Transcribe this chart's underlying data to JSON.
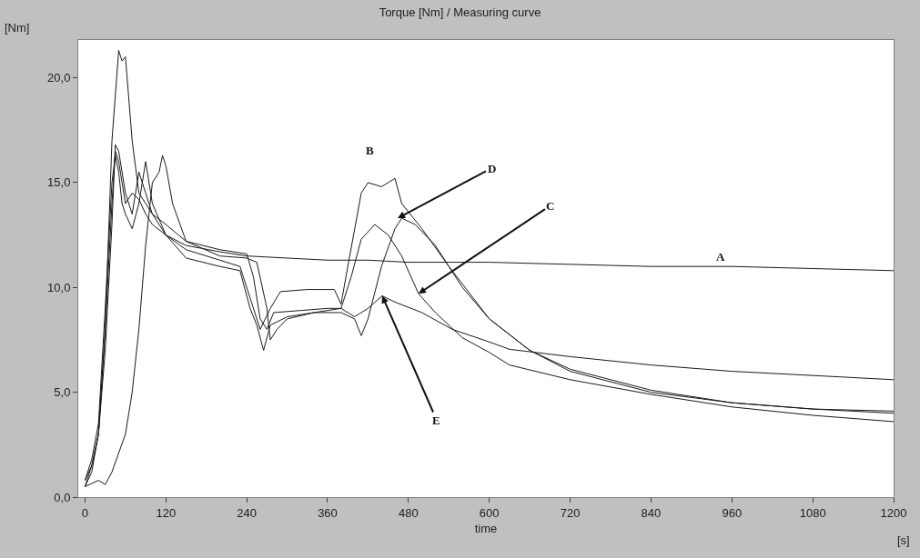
{
  "chart_data": {
    "type": "line",
    "title": "Torque [Nm] / Measuring curve",
    "xlabel": "time",
    "ylabel": "[Nm]",
    "annotations": [
      "A",
      "B",
      {
        "text": "D",
        "x": 464,
        "y": 13.3
      },
      {
        "text": "C",
        "x": 495,
        "y": 9.7
      },
      {
        "text": "E",
        "x": 441,
        "y": 9.6
      },
      "[s]"
    ],
    "xlim": [
      -10,
      1200
    ],
    "xticks": [
      0,
      120,
      240,
      360,
      480,
      600,
      720,
      840,
      960,
      1080,
      1200
    ],
    "ylim": [
      0,
      21.8
    ],
    "yticks": [
      {
        "value": 0,
        "label": "0,0"
      },
      {
        "value": 5,
        "label": "5,0"
      },
      {
        "value": 10,
        "label": "10,0"
      },
      {
        "value": 15,
        "label": "15,0"
      },
      {
        "value": 20,
        "label": "20,0"
      }
    ],
    "line_style": "solid",
    "marker": "none",
    "series": [
      {
        "color": "#1a1a1a",
        "x": [
          0,
          10,
          20,
          30,
          40,
          45,
          50,
          60,
          70,
          80,
          90,
          100,
          120,
          150,
          200,
          240,
          300,
          360,
          420,
          480,
          600,
          720,
          840,
          960,
          1080,
          1200
        ],
        "values": [
          0.5,
          1.5,
          3,
          8,
          14,
          16.5,
          16,
          14,
          14.5,
          14.2,
          13.5,
          13,
          12.5,
          12.0,
          11.7,
          11.5,
          11.4,
          11.3,
          11.3,
          11.2,
          11.2,
          11.1,
          11.0,
          11.0,
          10.9,
          10.8
        ]
      },
      {
        "color": "#1a1a1a",
        "x": [
          0,
          10,
          20,
          30,
          40,
          45,
          50,
          60,
          70,
          80,
          90,
          100,
          120,
          150,
          200,
          230,
          245,
          260,
          275,
          290,
          330,
          370,
          380,
          390,
          410,
          420,
          440,
          460,
          470,
          500,
          540,
          600,
          660,
          720,
          840,
          960,
          1080,
          1200
        ],
        "values": [
          0.8,
          1.5,
          3,
          7,
          13,
          16.8,
          16.5,
          14.5,
          13.5,
          15.5,
          14.5,
          13.5,
          12.5,
          11.8,
          11.3,
          11.0,
          9.5,
          8.0,
          9.0,
          9.8,
          9.9,
          9.9,
          9.2,
          11,
          14.5,
          15.0,
          14.8,
          15.2,
          14,
          12.8,
          11,
          8.5,
          7.0,
          6.0,
          5.0,
          4.5,
          4.2,
          4.0
        ]
      },
      {
        "color": "#1a1a1a",
        "x": [
          0,
          10,
          20,
          30,
          40,
          50,
          55,
          60,
          70,
          80,
          90,
          100,
          120,
          150,
          200,
          240,
          250,
          260,
          270,
          280,
          320,
          360,
          380,
          395,
          410,
          430,
          450,
          470,
          495,
          520,
          560,
          600,
          630,
          720,
          840,
          960,
          1080,
          1200
        ],
        "values": [
          0.5,
          1.2,
          3,
          8,
          17,
          21.3,
          20.8,
          21,
          17,
          14.5,
          14,
          13.5,
          13,
          12.2,
          11.8,
          11.6,
          10.5,
          8.5,
          8.0,
          8.8,
          8.9,
          9.0,
          9.0,
          10.5,
          12.3,
          13.0,
          12.5,
          11.5,
          9.7,
          8.8,
          7.6,
          6.9,
          6.3,
          5.6,
          4.9,
          4.3,
          3.9,
          3.6
        ]
      },
      {
        "color": "#1a1a1a",
        "x": [
          0,
          20,
          30,
          40,
          60,
          70,
          80,
          90,
          100,
          110,
          115,
          120,
          130,
          150,
          200,
          240,
          255,
          270,
          275,
          285,
          300,
          340,
          380,
          400,
          410,
          420,
          440,
          460,
          470,
          490,
          520,
          560,
          600,
          660,
          720,
          840,
          960,
          1080,
          1200
        ],
        "values": [
          0.5,
          0.8,
          0.6,
          1.2,
          3,
          5,
          8,
          12,
          15,
          15.5,
          16.3,
          15.8,
          14,
          12.2,
          11.5,
          11.4,
          11.2,
          9,
          7.5,
          8.0,
          8.5,
          8.8,
          8.8,
          8.5,
          7.7,
          8.5,
          11,
          12.8,
          13.3,
          13.0,
          12.0,
          10.0,
          8.5,
          7.0,
          6.1,
          5.1,
          4.5,
          4.2,
          4.1
        ]
      },
      {
        "color": "#1a1a1a",
        "x": [
          0,
          10,
          20,
          30,
          40,
          45,
          50,
          55,
          60,
          70,
          80,
          90,
          100,
          120,
          150,
          200,
          230,
          245,
          255,
          265,
          275,
          300,
          340,
          380,
          400,
          420,
          441,
          460,
          500,
          545,
          600,
          630,
          720,
          840,
          960,
          1080,
          1200
        ],
        "values": [
          0.8,
          1.8,
          3.5,
          9,
          15,
          16.3,
          15.5,
          14,
          13.5,
          12.8,
          14.0,
          16,
          14,
          12.5,
          11.4,
          11.0,
          10.8,
          9,
          8.2,
          7,
          8.2,
          8.6,
          8.8,
          9.0,
          8.6,
          9.0,
          9.6,
          9.3,
          8.8,
          8.0,
          7.4,
          7.05,
          6.7,
          6.3,
          6.0,
          5.8,
          5.6
        ]
      }
    ]
  }
}
